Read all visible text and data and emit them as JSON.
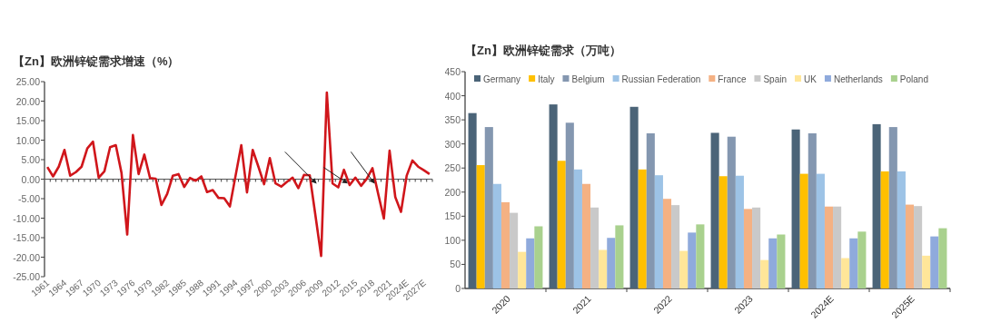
{
  "chart_data": [
    {
      "type": "line",
      "title": "【Zn】欧洲锌锭需求增速（%）",
      "categories": [
        "1961",
        null,
        null,
        "1964",
        null,
        null,
        "1967",
        null,
        null,
        "1970",
        null,
        null,
        "1973",
        null,
        null,
        "1976",
        null,
        null,
        "1979",
        null,
        null,
        "1982",
        null,
        null,
        "1985",
        null,
        null,
        "1988",
        null,
        null,
        "1991",
        null,
        null,
        "1994",
        null,
        null,
        "1997",
        null,
        null,
        "2000",
        null,
        null,
        "2003",
        null,
        null,
        "2006",
        null,
        null,
        "2009",
        null,
        null,
        "2012",
        null,
        null,
        "2015",
        null,
        null,
        "2018",
        null,
        null,
        "2021",
        null,
        null,
        "2024E",
        null,
        null,
        "2027E",
        null
      ],
      "series": [
        {
          "color": "#d0161b",
          "values": [
            3.1,
            0.7,
            3.2,
            7.5,
            0.9,
            1.8,
            3.2,
            7.9,
            9.6,
            0.4,
            2.0,
            8.2,
            8.7,
            1.6,
            -14.2,
            11.3,
            1.3,
            6.3,
            0.3,
            0.1,
            -6.6,
            -3.8,
            0.9,
            1.3,
            -2.0,
            0.3,
            -0.4,
            0.7,
            -3.3,
            -2.8,
            -4.8,
            -4.9,
            -7.0,
            0.9,
            8.7,
            -3.4,
            7.5,
            3.2,
            -1.3,
            5.4,
            -1.1,
            -1.9,
            -0.7,
            0.4,
            -2.3,
            1.1,
            1.0,
            -9.3,
            -19.7,
            22.2,
            -1.1,
            -2.1,
            2.4,
            -1.5,
            0.4,
            -1.7,
            0.1,
            2.8,
            -3.8,
            -10.1,
            7.3,
            -4.6,
            -8.4,
            0.9,
            4.8,
            3.2,
            2.3,
            1.3
          ]
        }
      ],
      "ylim": [
        -25,
        25
      ],
      "yticks": [
        {
          "value": -25,
          "label": "-25.00"
        },
        {
          "value": -20,
          "label": "-20.00"
        },
        {
          "value": -15,
          "label": "-15.00"
        },
        {
          "value": -10,
          "label": "-10.00"
        },
        {
          "value": -5,
          "label": "-5.00"
        },
        {
          "value": 0,
          "label": "0.00"
        },
        {
          "value": 5,
          "label": "5.00"
        },
        {
          "value": 10,
          "label": "10.00"
        },
        {
          "value": 15,
          "label": "15.00"
        },
        {
          "value": 20,
          "label": "20.00"
        },
        {
          "value": 25,
          "label": "25.00"
        }
      ],
      "marker": "none"
    },
    {
      "type": "bar",
      "title": "【Zn】欧洲锌锭需求（万吨）",
      "categories": [
        "2020",
        "2021",
        "2022",
        "2023",
        "2024E",
        "2025E"
      ],
      "series": [
        {
          "name": "Germany",
          "color": "#4b6478",
          "values": [
            364,
            382,
            377,
            323,
            330,
            341
          ]
        },
        {
          "name": "Italy",
          "color": "#ffc000",
          "values": [
            256,
            265,
            247,
            233,
            238,
            243
          ]
        },
        {
          "name": "Belgium",
          "color": "#8497b0",
          "values": [
            335,
            344,
            322,
            315,
            322,
            335
          ]
        },
        {
          "name": "Russian Federation",
          "color": "#9dc3e6",
          "values": [
            217,
            247,
            235,
            234,
            238,
            243
          ]
        },
        {
          "name": "France",
          "color": "#f4b183",
          "values": [
            179,
            217,
            186,
            165,
            170,
            174
          ]
        },
        {
          "name": "Spain",
          "color": "#c9c9c9",
          "values": [
            157,
            168,
            173,
            168,
            170,
            171
          ]
        },
        {
          "name": "UK",
          "color": "#ffe699",
          "values": [
            76,
            80,
            78,
            59,
            63,
            68
          ]
        },
        {
          "name": "Netherlands",
          "color": "#8faadc",
          "values": [
            104,
            105,
            116,
            104,
            104,
            108
          ]
        },
        {
          "name": "Poland",
          "color": "#a9d18e",
          "values": [
            129,
            131,
            133,
            112,
            118,
            125
          ]
        }
      ],
      "ylim": [
        0,
        450
      ],
      "yticks": [
        0,
        50,
        100,
        150,
        200,
        250,
        300,
        350,
        400,
        450
      ],
      "legend": "top"
    }
  ]
}
